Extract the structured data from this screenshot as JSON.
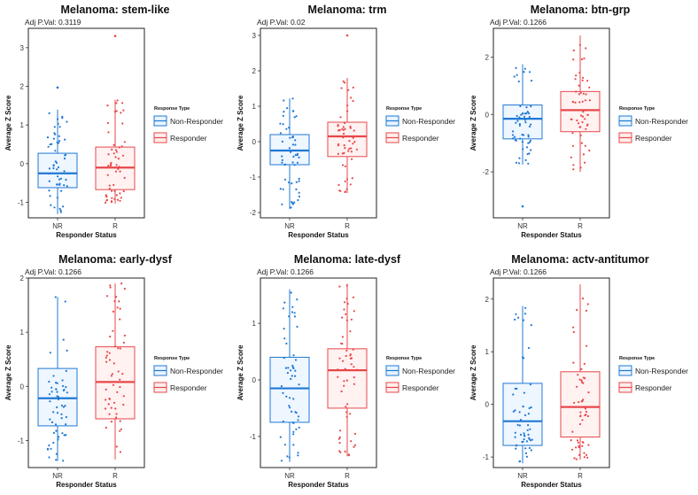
{
  "colors": {
    "nr": "#1f78d4",
    "r": "#e8474a",
    "nr_fill": "#d9ecff",
    "r_fill": "#ffe3e1"
  },
  "chart_data": [
    {
      "type": "box",
      "title": "Melanoma: stem-like",
      "subtitle": "Adj P.Val: 0.3119",
      "xlabel": "Responder Status",
      "ylabel": "Average Z Score",
      "categories": [
        "NR",
        "R"
      ],
      "yticks": [
        -1,
        0,
        1,
        2,
        3
      ],
      "ylim": [
        -1.4,
        3.5
      ],
      "legend": {
        "title": "Response Type",
        "entries": [
          "Non-Responder",
          "Responder"
        ]
      },
      "boxes": [
        {
          "name": "NR",
          "min": -1.3,
          "q1": -0.62,
          "median": -0.25,
          "q3": 0.27,
          "max": 1.97,
          "whisker_high": 1.4
        },
        {
          "name": "R",
          "min": -1.03,
          "q1": -0.67,
          "median": -0.1,
          "q3": 0.43,
          "max": 3.3,
          "whisker_high": 1.65
        }
      ]
    },
    {
      "type": "box",
      "title": "Melanoma: trm",
      "subtitle": "Adj P.Val: 0.02",
      "xlabel": "Responder Status",
      "ylabel": "Average Z Score",
      "categories": [
        "NR",
        "R"
      ],
      "yticks": [
        -2,
        -1,
        0,
        1,
        2,
        3
      ],
      "ylim": [
        -2.15,
        3.2
      ],
      "legend": {
        "title": "Response Type",
        "entries": [
          "Non-Responder",
          "Responder"
        ]
      },
      "boxes": [
        {
          "name": "NR",
          "min": -1.9,
          "q1": -0.65,
          "median": -0.25,
          "q3": 0.2,
          "max": 1.22,
          "whisker_high": 1.22
        },
        {
          "name": "R",
          "min": -1.45,
          "q1": -0.42,
          "median": 0.15,
          "q3": 0.55,
          "max": 3.0,
          "whisker_high": 1.8
        }
      ]
    },
    {
      "type": "box",
      "title": "Melanoma: btn-grp",
      "subtitle": "Adj P.Val: 0.1266",
      "xlabel": "Responder Status",
      "ylabel": "Average Z Score",
      "categories": [
        "NR",
        "R"
      ],
      "yticks": [
        -2,
        0,
        2
      ],
      "ylim": [
        -3.6,
        3.0
      ],
      "legend": {
        "title": "Response Type",
        "entries": [
          "Non-Responder",
          "Responder"
        ]
      },
      "boxes": [
        {
          "name": "NR",
          "min": -3.2,
          "q1": -0.85,
          "median": -0.15,
          "q3": 0.33,
          "max": 1.75,
          "whisker_high": 1.75,
          "whisker_low": -1.75
        },
        {
          "name": "R",
          "min": -2.0,
          "q1": -0.6,
          "median": 0.15,
          "q3": 0.8,
          "max": 2.75,
          "whisker_high": 2.75
        }
      ]
    },
    {
      "type": "box",
      "title": "Melanoma: early-dysf",
      "subtitle": "Adj P.Val: 0.1266",
      "xlabel": "Responder Status",
      "ylabel": "Average Z Score",
      "categories": [
        "NR",
        "R"
      ],
      "yticks": [
        -1,
        0,
        1,
        2
      ],
      "ylim": [
        -1.5,
        2.0
      ],
      "legend": {
        "title": "Response Type",
        "entries": [
          "Non-Responder",
          "Responder"
        ]
      },
      "boxes": [
        {
          "name": "NR",
          "min": -1.38,
          "q1": -0.73,
          "median": -0.22,
          "q3": 0.33,
          "max": 1.65,
          "whisker_high": 1.65
        },
        {
          "name": "R",
          "min": -1.35,
          "q1": -0.6,
          "median": 0.08,
          "q3": 0.73,
          "max": 1.9,
          "whisker_high": 1.9
        }
      ]
    },
    {
      "type": "box",
      "title": "Melanoma: late-dysf",
      "subtitle": "Adj P.Val: 0.1266",
      "xlabel": "Responder Status",
      "ylabel": "Average Z Score",
      "categories": [
        "NR",
        "R"
      ],
      "yticks": [
        -1,
        0,
        1
      ],
      "ylim": [
        -1.55,
        1.8
      ],
      "legend": {
        "title": "Response Type",
        "entries": [
          "Non-Responder",
          "Responder"
        ]
      },
      "boxes": [
        {
          "name": "NR",
          "min": -1.45,
          "q1": -0.75,
          "median": -0.15,
          "q3": 0.4,
          "max": 1.6,
          "whisker_high": 1.6
        },
        {
          "name": "R",
          "min": -1.35,
          "q1": -0.5,
          "median": 0.17,
          "q3": 0.55,
          "max": 1.7,
          "whisker_high": 1.7
        }
      ]
    },
    {
      "type": "box",
      "title": "Melanoma: actv-antitumor",
      "subtitle": "Adj P.Val: 0.1266",
      "xlabel": "Responder Status",
      "ylabel": "Average Z Score",
      "categories": [
        "NR",
        "R"
      ],
      "yticks": [
        -1,
        0,
        1,
        2
      ],
      "ylim": [
        -1.2,
        2.4
      ],
      "legend": {
        "title": "Response Type",
        "entries": [
          "Non-Responder",
          "Responder"
        ]
      },
      "boxes": [
        {
          "name": "NR",
          "min": -1.12,
          "q1": -0.78,
          "median": -0.32,
          "q3": 0.4,
          "max": 1.87,
          "whisker_high": 1.87
        },
        {
          "name": "R",
          "min": -1.05,
          "q1": -0.62,
          "median": -0.05,
          "q3": 0.62,
          "max": 2.28,
          "whisker_high": 2.28
        }
      ]
    }
  ]
}
